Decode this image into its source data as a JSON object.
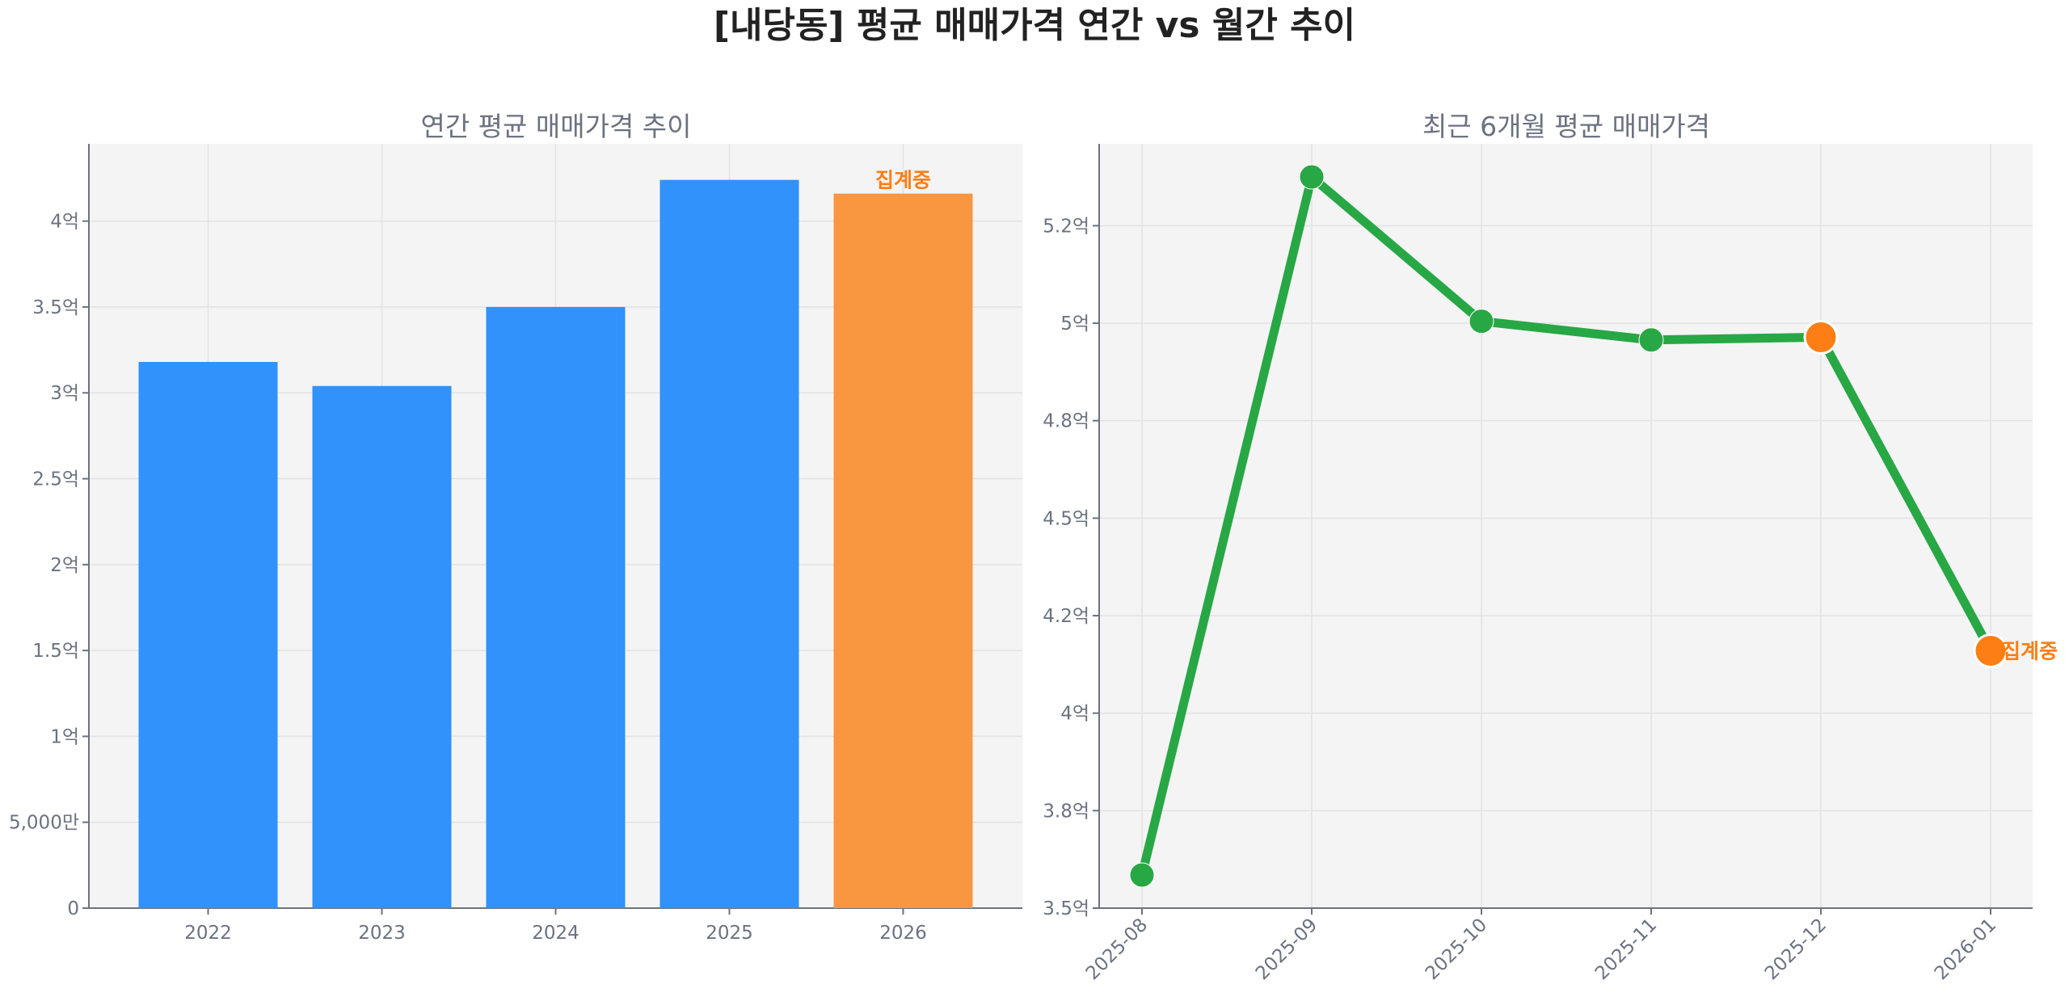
{
  "title": "[내당동] 평균 매매가격 연간 vs 월간 추이",
  "colors": {
    "bar": "#3092fa",
    "bar_pending": "#f99640",
    "line": "#28a745",
    "pending": "#fd7e14",
    "plot_bg": "#f4f4f4",
    "text": "#6b7280"
  },
  "chart_data": [
    {
      "type": "bar",
      "title": "연간 평균 매매가격 추이",
      "categories": [
        "2022",
        "2023",
        "2024",
        "2025",
        "2026"
      ],
      "values": [
        3.18,
        3.04,
        3.5,
        4.24,
        4.16
      ],
      "unit": "억",
      "pending_index": 4,
      "pending_label": "집계중",
      "ylim": [
        0,
        4.45
      ],
      "yticks": [
        0,
        0.5,
        1,
        1.5,
        2,
        2.5,
        3,
        3.5,
        4
      ],
      "ytick_labels": [
        "0",
        "5,000만",
        "1억",
        "1.5억",
        "2억",
        "2.5억",
        "3억",
        "3.5억",
        "4억"
      ],
      "grid": true
    },
    {
      "type": "line",
      "title": "최근 6개월 평균 매매가격",
      "categories": [
        "2025-08",
        "2025-09",
        "2025-10",
        "2025-11",
        "2025-12",
        "2026-01"
      ],
      "values": [
        3.585,
        5.375,
        5.005,
        4.957,
        4.964,
        4.16
      ],
      "unit": "억",
      "highlight_indices": [
        4,
        5
      ],
      "pending_label": "집계중",
      "pending_index": 5,
      "ylim": [
        3.5,
        5.46
      ],
      "yticks": [
        3.5,
        3.75,
        4.0,
        4.25,
        4.5,
        4.75,
        5.0,
        5.25
      ],
      "ytick_labels": [
        "3.5억",
        "3.8억",
        "4억",
        "4.2억",
        "4.5억",
        "4.8억",
        "5억",
        "5.2억"
      ],
      "grid": true
    }
  ]
}
